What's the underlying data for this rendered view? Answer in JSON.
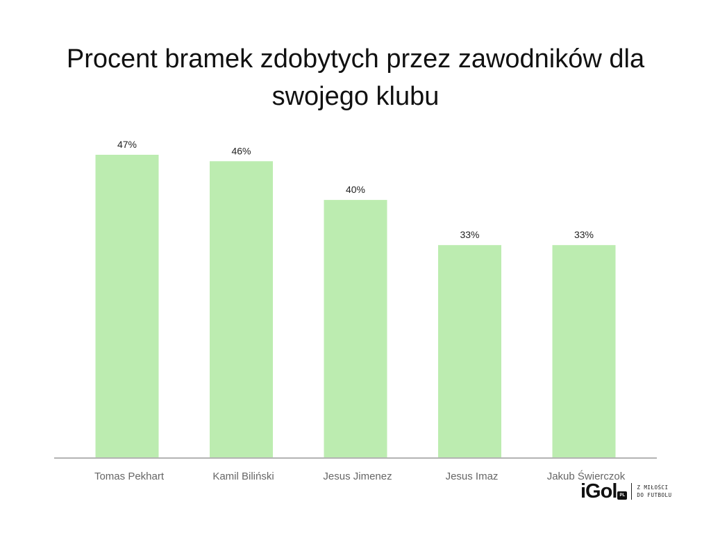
{
  "chart_data": {
    "type": "bar",
    "title": "Procent bramek zdobytych przez zawodników dla swojego klubu",
    "categories": [
      "Tomas Pekhart",
      "Kamil Biliński",
      "Jesus Jimenez",
      "Jesus Imaz",
      "Jakub Świerczok"
    ],
    "values": [
      47,
      46,
      40,
      33,
      33
    ],
    "value_labels": [
      "47%",
      "46%",
      "40%",
      "33%",
      "33%"
    ],
    "unit": "%",
    "ylim": [
      0,
      47
    ],
    "xlabel": "",
    "ylabel": "",
    "grid": false,
    "legend": "none",
    "bar_color": "#bcecb0",
    "axis_color": "#b3b3b3"
  },
  "logo": {
    "brand": "iGol",
    "badge": "PL",
    "tagline_line1": "Z MIŁOŚCI",
    "tagline_line2": "DO FUTBOLU"
  }
}
